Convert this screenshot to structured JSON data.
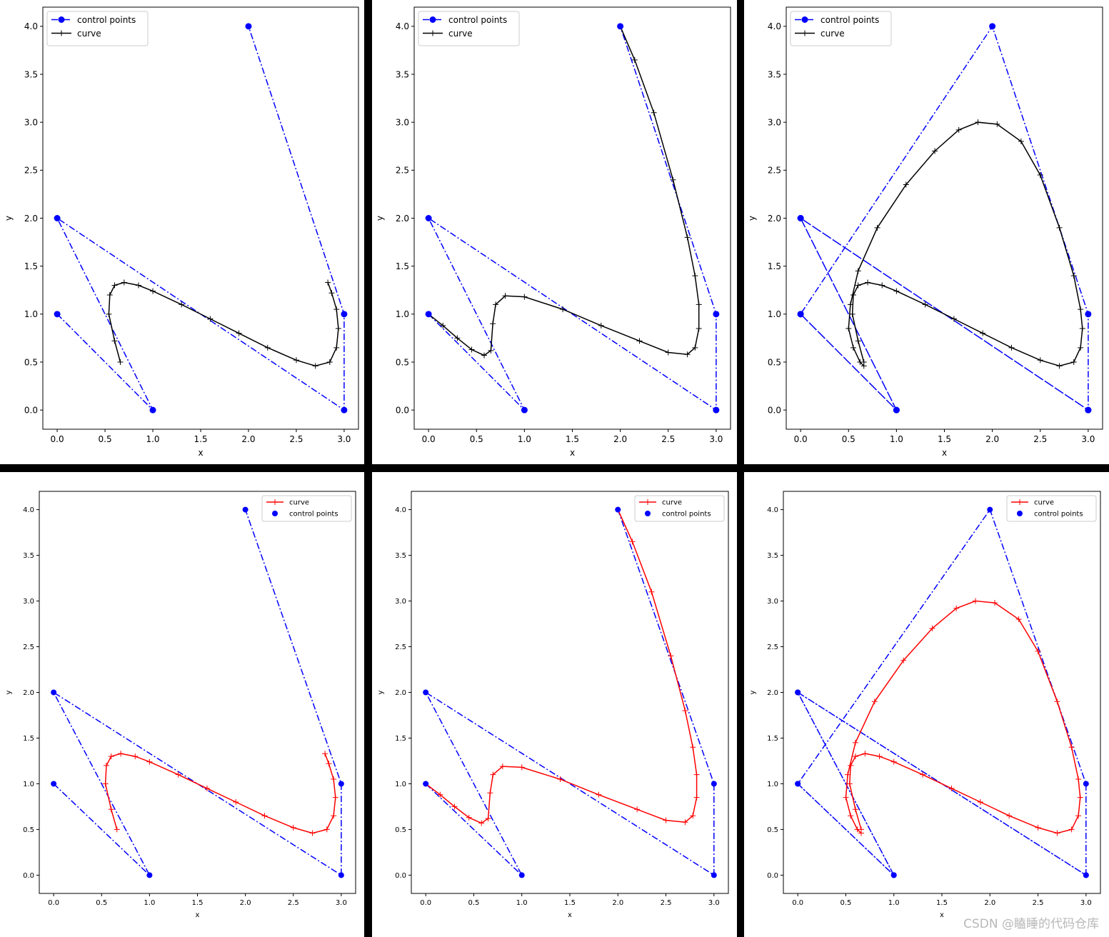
{
  "colors": {
    "control": "#0000ff",
    "curve_top": "#000000",
    "curve_bottom": "#ff0000"
  },
  "watermark": "CSDN @瞌睡的代码仓库",
  "chart_data": [
    {
      "type": "line",
      "panel": "top-left",
      "xlabel": "x",
      "ylabel": "y",
      "xlim": [
        -0.15,
        3.15
      ],
      "ylim": [
        -0.2,
        4.2
      ],
      "xticks": [
        "0.0",
        "0.5",
        "1.0",
        "1.5",
        "2.0",
        "2.5",
        "3.0"
      ],
      "yticks": [
        "0.0",
        "0.5",
        "1.0",
        "1.5",
        "2.0",
        "2.5",
        "3.0",
        "3.5",
        "4.0"
      ],
      "legend": {
        "placement": "top-left",
        "entries": [
          "control points",
          "curve"
        ]
      },
      "series": [
        {
          "name": "control points",
          "style": "blue dash-dot with circle markers",
          "x": [
            0,
            1,
            0,
            3,
            3,
            2
          ],
          "y": [
            1,
            0,
            2,
            0,
            1,
            4
          ]
        },
        {
          "name": "curve",
          "style": "black line with plus markers",
          "x": [
            0.66,
            0.6,
            0.54,
            0.55,
            0.6,
            0.7,
            0.85,
            1.0,
            1.3,
            1.6,
            1.9,
            2.2,
            2.5,
            2.7,
            2.85,
            2.92,
            2.94,
            2.92,
            2.87,
            2.83
          ],
          "y": [
            0.5,
            0.72,
            1.0,
            1.2,
            1.3,
            1.33,
            1.3,
            1.24,
            1.1,
            0.95,
            0.8,
            0.65,
            0.52,
            0.46,
            0.5,
            0.65,
            0.85,
            1.05,
            1.22,
            1.33
          ]
        }
      ]
    },
    {
      "type": "line",
      "panel": "top-middle",
      "xlabel": "x",
      "ylabel": "y",
      "xlim": [
        -0.15,
        3.15
      ],
      "ylim": [
        -0.2,
        4.2
      ],
      "xticks": [
        "0.0",
        "0.5",
        "1.0",
        "1.5",
        "2.0",
        "2.5",
        "3.0"
      ],
      "yticks": [
        "0.0",
        "0.5",
        "1.0",
        "1.5",
        "2.0",
        "2.5",
        "3.0",
        "3.5",
        "4.0"
      ],
      "legend": {
        "placement": "top-left",
        "entries": [
          "control points",
          "curve"
        ]
      },
      "series": [
        {
          "name": "control points",
          "style": "blue dash-dot with circle markers",
          "x": [
            0,
            1,
            0,
            3,
            3,
            2
          ],
          "y": [
            1,
            0,
            2,
            0,
            1,
            4
          ]
        },
        {
          "name": "curve",
          "style": "black line with plus markers",
          "x": [
            0.0,
            0.15,
            0.3,
            0.45,
            0.58,
            0.65,
            0.67,
            0.7,
            0.8,
            1.0,
            1.4,
            1.8,
            2.2,
            2.5,
            2.7,
            2.78,
            2.82,
            2.82,
            2.78,
            2.7,
            2.55,
            2.35,
            2.15,
            2.0
          ],
          "y": [
            1.0,
            0.88,
            0.75,
            0.63,
            0.57,
            0.62,
            0.9,
            1.1,
            1.19,
            1.18,
            1.05,
            0.88,
            0.72,
            0.6,
            0.58,
            0.65,
            0.85,
            1.1,
            1.4,
            1.8,
            2.4,
            3.1,
            3.65,
            4.0
          ]
        }
      ]
    },
    {
      "type": "line",
      "panel": "top-right",
      "xlabel": "x",
      "ylabel": "y",
      "xlim": [
        -0.15,
        3.15
      ],
      "ylim": [
        -0.2,
        4.2
      ],
      "xticks": [
        "0.0",
        "0.5",
        "1.0",
        "1.5",
        "2.0",
        "2.5",
        "3.0"
      ],
      "yticks": [
        "0.0",
        "0.5",
        "1.0",
        "1.5",
        "2.0",
        "2.5",
        "3.0",
        "3.5",
        "4.0"
      ],
      "legend": {
        "placement": "top-left",
        "entries": [
          "control points",
          "curve"
        ]
      },
      "series": [
        {
          "name": "control points",
          "style": "blue dash-dot with circle markers",
          "x": [
            0,
            1,
            0,
            3,
            3,
            2,
            0,
            1,
            0,
            3
          ],
          "y": [
            1,
            0,
            2,
            0,
            1,
            4,
            1,
            0,
            2,
            0
          ]
        },
        {
          "name": "curve",
          "style": "black line with plus markers",
          "x": [
            0.66,
            0.6,
            0.54,
            0.55,
            0.6,
            0.7,
            0.85,
            1.0,
            1.3,
            1.6,
            1.9,
            2.2,
            2.5,
            2.7,
            2.85,
            2.92,
            2.94,
            2.92,
            2.85,
            2.7,
            2.5,
            2.3,
            2.05,
            1.85,
            1.65,
            1.4,
            1.1,
            0.8,
            0.6,
            0.52,
            0.5,
            0.55,
            0.62,
            0.66
          ],
          "y": [
            0.5,
            0.72,
            1.0,
            1.2,
            1.3,
            1.33,
            1.3,
            1.24,
            1.1,
            0.95,
            0.8,
            0.65,
            0.52,
            0.46,
            0.5,
            0.65,
            0.85,
            1.05,
            1.4,
            1.9,
            2.45,
            2.8,
            2.98,
            3.0,
            2.92,
            2.7,
            2.35,
            1.9,
            1.45,
            1.1,
            0.85,
            0.65,
            0.5,
            0.46
          ]
        }
      ]
    },
    {
      "type": "line",
      "panel": "bottom-left",
      "xlabel": "x",
      "ylabel": "y",
      "xlim": [
        -0.15,
        3.15
      ],
      "ylim": [
        -0.2,
        4.2
      ],
      "xticks": [
        "0.0",
        "0.5",
        "1.0",
        "1.5",
        "2.0",
        "2.5",
        "3.0"
      ],
      "yticks": [
        "0.0",
        "0.5",
        "1.0",
        "1.5",
        "2.0",
        "2.5",
        "3.0",
        "3.5",
        "4.0"
      ],
      "legend": {
        "placement": "top-right",
        "entries": [
          "curve",
          "control points"
        ]
      },
      "series": [
        {
          "name": "curve",
          "style": "red line with plus markers",
          "x": [
            0.66,
            0.6,
            0.54,
            0.55,
            0.6,
            0.7,
            0.85,
            1.0,
            1.3,
            1.6,
            1.9,
            2.2,
            2.5,
            2.7,
            2.85,
            2.92,
            2.94,
            2.92,
            2.87,
            2.83
          ],
          "y": [
            0.5,
            0.72,
            1.0,
            1.2,
            1.3,
            1.33,
            1.3,
            1.24,
            1.1,
            0.95,
            0.8,
            0.65,
            0.52,
            0.46,
            0.5,
            0.65,
            0.85,
            1.05,
            1.22,
            1.33
          ]
        },
        {
          "name": "control points",
          "style": "blue scatter with dash-dot polygon",
          "x": [
            0,
            1,
            0,
            3,
            3,
            2
          ],
          "y": [
            1,
            0,
            2,
            0,
            1,
            4
          ]
        }
      ]
    },
    {
      "type": "line",
      "panel": "bottom-middle",
      "xlabel": "x",
      "ylabel": "y",
      "xlim": [
        -0.15,
        3.15
      ],
      "ylim": [
        -0.2,
        4.2
      ],
      "xticks": [
        "0.0",
        "0.5",
        "1.0",
        "1.5",
        "2.0",
        "2.5",
        "3.0"
      ],
      "yticks": [
        "0.0",
        "0.5",
        "1.0",
        "1.5",
        "2.0",
        "2.5",
        "3.0",
        "3.5",
        "4.0"
      ],
      "legend": {
        "placement": "top-right",
        "entries": [
          "curve",
          "control points"
        ]
      },
      "series": [
        {
          "name": "curve",
          "style": "red line with plus markers",
          "x": [
            0.0,
            0.15,
            0.3,
            0.45,
            0.58,
            0.65,
            0.67,
            0.7,
            0.8,
            1.0,
            1.4,
            1.8,
            2.2,
            2.5,
            2.7,
            2.78,
            2.82,
            2.82,
            2.78,
            2.7,
            2.55,
            2.35,
            2.15,
            2.0
          ],
          "y": [
            1.0,
            0.88,
            0.75,
            0.63,
            0.57,
            0.62,
            0.9,
            1.1,
            1.19,
            1.18,
            1.05,
            0.88,
            0.72,
            0.6,
            0.58,
            0.65,
            0.85,
            1.1,
            1.4,
            1.8,
            2.4,
            3.1,
            3.65,
            4.0
          ]
        },
        {
          "name": "control points",
          "style": "blue scatter with dash-dot polygon",
          "x": [
            0,
            1,
            0,
            3,
            3,
            2
          ],
          "y": [
            1,
            0,
            2,
            0,
            1,
            4
          ]
        }
      ]
    },
    {
      "type": "line",
      "panel": "bottom-right",
      "xlabel": "x",
      "ylabel": "y",
      "xlim": [
        -0.15,
        3.15
      ],
      "ylim": [
        -0.2,
        4.2
      ],
      "xticks": [
        "0.0",
        "0.5",
        "1.0",
        "1.5",
        "2.0",
        "2.5",
        "3.0"
      ],
      "yticks": [
        "0.0",
        "0.5",
        "1.0",
        "1.5",
        "2.0",
        "2.5",
        "3.0",
        "3.5",
        "4.0"
      ],
      "legend": {
        "placement": "top-right",
        "entries": [
          "curve",
          "control points"
        ]
      },
      "series": [
        {
          "name": "curve",
          "style": "red line with plus markers",
          "x": [
            0.66,
            0.6,
            0.54,
            0.55,
            0.6,
            0.7,
            0.85,
            1.0,
            1.3,
            1.6,
            1.9,
            2.2,
            2.5,
            2.7,
            2.85,
            2.92,
            2.94,
            2.92,
            2.85,
            2.7,
            2.5,
            2.3,
            2.05,
            1.85,
            1.65,
            1.4,
            1.1,
            0.8,
            0.6,
            0.52,
            0.5,
            0.55,
            0.62,
            0.66
          ],
          "y": [
            0.5,
            0.72,
            1.0,
            1.2,
            1.3,
            1.33,
            1.3,
            1.24,
            1.1,
            0.95,
            0.8,
            0.65,
            0.52,
            0.46,
            0.5,
            0.65,
            0.85,
            1.05,
            1.4,
            1.9,
            2.45,
            2.8,
            2.98,
            3.0,
            2.92,
            2.7,
            2.35,
            1.9,
            1.45,
            1.1,
            0.85,
            0.65,
            0.5,
            0.46
          ]
        },
        {
          "name": "control points",
          "style": "blue scatter with dash-dot polygon",
          "x": [
            0,
            1,
            0,
            3,
            3,
            2,
            0,
            1,
            0,
            3
          ],
          "y": [
            1,
            0,
            2,
            0,
            1,
            4,
            1,
            0,
            2,
            0
          ]
        }
      ]
    }
  ]
}
